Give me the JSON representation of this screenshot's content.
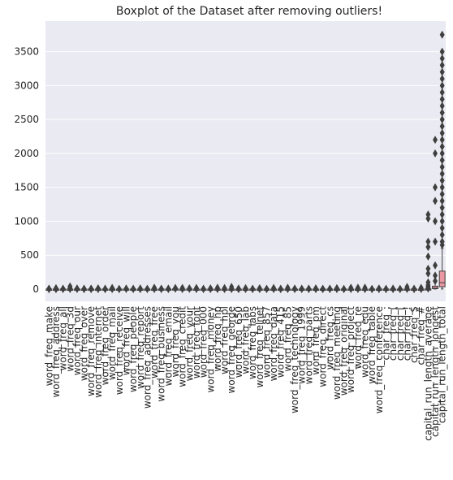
{
  "chart_data": {
    "type": "boxplot",
    "title": "Boxplot of the Dataset after removing outliers!",
    "xlabel": "",
    "ylabel": "",
    "ylim": [
      -180,
      3950
    ],
    "yticks": [
      0,
      500,
      1000,
      1500,
      2000,
      2500,
      3000,
      3500
    ],
    "grid": true,
    "colors": {
      "background": "#eaeaf2",
      "grid": "#ffffff",
      "text": "#262626",
      "box_edge": "#3f3f3f"
    },
    "categories": [
      "word_freq_make",
      "word_freq_address",
      "word_freq_all",
      "word_freq_3d",
      "word_freq_our",
      "word_freq_over",
      "word_freq_remove",
      "word_freq_internet",
      "word_freq_order",
      "word_freq_mail",
      "word_freq_receive",
      "word_freq_will",
      "word_freq_people",
      "word_freq_report",
      "word_freq_addresses",
      "word_freq_free",
      "word_freq_business",
      "word_freq_email",
      "word_freq_you",
      "word_freq_credit",
      "word_freq_your",
      "word_freq_font",
      "word_freq_000",
      "word_freq_money",
      "word_freq_hp",
      "word_freq_hpl",
      "word_freq_george",
      "word_freq_650",
      "word_freq_lab",
      "word_freq_labs",
      "word_freq_telnet",
      "word_freq_857",
      "word_freq_data",
      "word_freq_415",
      "word_freq_85",
      "word_freq_technology",
      "word_freq_1999",
      "word_freq_parts",
      "word_freq_pm",
      "word_freq_direct",
      "word_freq_cs",
      "word_freq_meeting",
      "word_freq_original",
      "word_freq_project",
      "word_freq_re",
      "word_freq_edu",
      "word_freq_table",
      "word_freq_conference",
      "char_freq_;",
      "char_freq_(",
      "char_freq_[",
      "char_freq_!",
      "char_freq_$",
      "char_freq_#",
      "capital_run_length_average",
      "capital_run_length_longest",
      "capital_run_length_total"
    ],
    "colors_series": [
      "#ea96a3",
      "#e59d7e",
      "#d49f59",
      "#c3a452",
      "#b3a64a",
      "#a2aa45",
      "#8eaf45",
      "#6fb449",
      "#52b24f",
      "#4fb267",
      "#52b27f",
      "#53b08c",
      "#54af97",
      "#56afa2",
      "#58aeac",
      "#5aacb7",
      "#5caac4",
      "#5fa8d2",
      "#6aa1e3",
      "#8ca1e5",
      "#a39ce5",
      "#b596e6",
      "#c98ee6",
      "#df83e4",
      "#e387d2",
      "#e68bc3",
      "#e88fb5",
      "#ea94a8",
      "#ea96a3",
      "#e59d7e",
      "#d49f59",
      "#c3a452",
      "#b3a64a",
      "#a2aa45",
      "#8eaf45",
      "#6fb449",
      "#52b24f",
      "#4fb267",
      "#52b27f",
      "#53b08c",
      "#54af97",
      "#56afa2",
      "#58aeac",
      "#5aacb7",
      "#5caac4",
      "#5fa8d2",
      "#6aa1e3",
      "#8ca1e5",
      "#a39ce5",
      "#b596e6",
      "#c98ee6",
      "#df83e4",
      "#e387d2",
      "#e68bc3",
      "#e88fb5",
      "#ea94a8",
      "#ea96a3"
    ],
    "series": [
      {
        "q1": 0,
        "med": 0,
        "q3": 0,
        "whislo": 0,
        "whishi": 0,
        "fliers": [
          0.5,
          1,
          2,
          4,
          5,
          6
        ]
      },
      {
        "q1": 0,
        "med": 0,
        "q3": 0,
        "whislo": 0,
        "whishi": 0,
        "fliers": [
          0.5,
          1,
          3,
          5,
          8,
          14
        ]
      },
      {
        "q1": 0,
        "med": 0,
        "q3": 0.4,
        "whislo": 0,
        "whishi": 1,
        "fliers": [
          2,
          3,
          4,
          5
        ]
      },
      {
        "q1": 0,
        "med": 0,
        "q3": 0,
        "whislo": 0,
        "whishi": 0,
        "fliers": [
          1,
          5,
          10,
          20,
          40
        ]
      },
      {
        "q1": 0,
        "med": 0,
        "q3": 0.4,
        "whislo": 0,
        "whishi": 1,
        "fliers": [
          2,
          4,
          6,
          10
        ]
      },
      {
        "q1": 0,
        "med": 0,
        "q3": 0,
        "whislo": 0,
        "whishi": 0,
        "fliers": [
          0.5,
          1,
          2,
          4,
          5
        ]
      },
      {
        "q1": 0,
        "med": 0,
        "q3": 0,
        "whislo": 0,
        "whishi": 0,
        "fliers": [
          0.5,
          1,
          3,
          5,
          7
        ]
      },
      {
        "q1": 0,
        "med": 0,
        "q3": 0,
        "whislo": 0,
        "whishi": 0,
        "fliers": [
          0.5,
          2,
          5,
          8,
          11
        ]
      },
      {
        "q1": 0,
        "med": 0,
        "q3": 0,
        "whislo": 0,
        "whishi": 0,
        "fliers": [
          0.5,
          1,
          2,
          4,
          5
        ]
      },
      {
        "q1": 0,
        "med": 0,
        "q3": 0.2,
        "whislo": 0,
        "whishi": 0.5,
        "fliers": [
          1,
          3,
          6,
          9,
          18
        ]
      },
      {
        "q1": 0,
        "med": 0,
        "q3": 0,
        "whislo": 0,
        "whishi": 0,
        "fliers": [
          0.5,
          1,
          2
        ]
      },
      {
        "q1": 0,
        "med": 0.1,
        "q3": 0.8,
        "whislo": 0,
        "whishi": 2,
        "fliers": [
          3,
          5,
          9
        ]
      },
      {
        "q1": 0,
        "med": 0,
        "q3": 0,
        "whislo": 0,
        "whishi": 0,
        "fliers": [
          0.5,
          2,
          5
        ]
      },
      {
        "q1": 0,
        "med": 0,
        "q3": 0,
        "whislo": 0,
        "whishi": 0,
        "fliers": [
          0.5,
          3,
          10
        ]
      },
      {
        "q1": 0,
        "med": 0,
        "q3": 0,
        "whislo": 0,
        "whishi": 0,
        "fliers": [
          0.5,
          2,
          4
        ]
      },
      {
        "q1": 0,
        "med": 0,
        "q3": 0.1,
        "whislo": 0,
        "whishi": 0.2,
        "fliers": [
          1,
          5,
          10,
          20
        ]
      },
      {
        "q1": 0,
        "med": 0,
        "q3": 0,
        "whislo": 0,
        "whishi": 0,
        "fliers": [
          0.5,
          3,
          7
        ]
      },
      {
        "q1": 0,
        "med": 0,
        "q3": 0,
        "whislo": 0,
        "whishi": 0,
        "fliers": [
          0.5,
          3,
          9
        ]
      },
      {
        "q1": 0,
        "med": 1.3,
        "q3": 2.6,
        "whislo": 0,
        "whishi": 6,
        "fliers": [
          7,
          10,
          18
        ]
      },
      {
        "q1": 0,
        "med": 0,
        "q3": 0,
        "whislo": 0,
        "whishi": 0,
        "fliers": [
          0.5,
          5,
          18
        ]
      },
      {
        "q1": 0,
        "med": 0.2,
        "q3": 1.3,
        "whislo": 0,
        "whishi": 3,
        "fliers": [
          4,
          7,
          11
        ]
      },
      {
        "q1": 0,
        "med": 0,
        "q3": 0,
        "whislo": 0,
        "whishi": 0,
        "fliers": [
          1,
          6,
          17
        ]
      },
      {
        "q1": 0,
        "med": 0,
        "q3": 0,
        "whislo": 0,
        "whishi": 0,
        "fliers": [
          0.5,
          2,
          5
        ]
      },
      {
        "q1": 0,
        "med": 0,
        "q3": 0,
        "whislo": 0,
        "whishi": 0,
        "fliers": [
          0.5,
          5,
          12
        ]
      },
      {
        "q1": 0,
        "med": 0,
        "q3": 0,
        "whislo": 0,
        "whishi": 0,
        "fliers": [
          0.5,
          5,
          20
        ]
      },
      {
        "q1": 0,
        "med": 0,
        "q3": 0,
        "whislo": 0,
        "whishi": 0,
        "fliers": [
          0.5,
          4,
          16
        ]
      },
      {
        "q1": 0,
        "med": 0,
        "q3": 0,
        "whislo": 0,
        "whishi": 0,
        "fliers": [
          0.5,
          8,
          33
        ]
      },
      {
        "q1": 0,
        "med": 0,
        "q3": 0,
        "whislo": 0,
        "whishi": 0,
        "fliers": [
          0.5,
          3,
          9
        ]
      },
      {
        "q1": 0,
        "med": 0,
        "q3": 0,
        "whislo": 0,
        "whishi": 0,
        "fliers": [
          0.5,
          5,
          14
        ]
      },
      {
        "q1": 0,
        "med": 0,
        "q3": 0,
        "whislo": 0,
        "whishi": 0,
        "fliers": [
          0.5,
          2,
          6
        ]
      },
      {
        "q1": 0,
        "med": 0,
        "q3": 0,
        "whislo": 0,
        "whishi": 0,
        "fliers": [
          0.5,
          4,
          13
        ]
      },
      {
        "q1": 0,
        "med": 0,
        "q3": 0,
        "whislo": 0,
        "whishi": 0,
        "fliers": [
          0.5,
          1,
          5
        ]
      },
      {
        "q1": 0,
        "med": 0,
        "q3": 0,
        "whislo": 0,
        "whishi": 0,
        "fliers": [
          0.5,
          5,
          18
        ]
      },
      {
        "q1": 0,
        "med": 0,
        "q3": 0,
        "whislo": 0,
        "whishi": 0,
        "fliers": [
          0.5,
          1,
          5
        ]
      },
      {
        "q1": 0,
        "med": 0,
        "q3": 0,
        "whislo": 0,
        "whishi": 0,
        "fliers": [
          0.5,
          5,
          20
        ]
      },
      {
        "q1": 0,
        "med": 0,
        "q3": 0,
        "whislo": 0,
        "whishi": 0,
        "fliers": [
          0.5,
          2,
          8
        ]
      },
      {
        "q1": 0,
        "med": 0,
        "q3": 0,
        "whislo": 0,
        "whishi": 0,
        "fliers": [
          0.5,
          2,
          7
        ]
      },
      {
        "q1": 0,
        "med": 0,
        "q3": 0,
        "whislo": 0,
        "whishi": 0,
        "fliers": [
          0.5,
          2,
          8
        ]
      },
      {
        "q1": 0,
        "med": 0,
        "q3": 0,
        "whislo": 0,
        "whishi": 0,
        "fliers": [
          0.5,
          3,
          11
        ]
      },
      {
        "q1": 0,
        "med": 0,
        "q3": 0,
        "whislo": 0,
        "whishi": 0,
        "fliers": [
          0.5,
          1,
          5
        ]
      },
      {
        "q1": 0,
        "med": 0,
        "q3": 0,
        "whislo": 0,
        "whishi": 0,
        "fliers": [
          0.5,
          2,
          7
        ]
      },
      {
        "q1": 0,
        "med": 0,
        "q3": 0,
        "whislo": 0,
        "whishi": 0,
        "fliers": [
          0.5,
          4,
          14
        ]
      },
      {
        "q1": 0,
        "med": 0,
        "q3": 0,
        "whislo": 0,
        "whishi": 0,
        "fliers": [
          0.5,
          1,
          3
        ]
      },
      {
        "q1": 0,
        "med": 0,
        "q3": 0,
        "whislo": 0,
        "whishi": 0,
        "fliers": [
          0.5,
          5,
          20
        ]
      },
      {
        "q1": 0,
        "med": 0,
        "q3": 0.1,
        "whislo": 0,
        "whishi": 0.2,
        "fliers": [
          1,
          6,
          21
        ]
      },
      {
        "q1": 0,
        "med": 0,
        "q3": 0,
        "whislo": 0,
        "whishi": 0,
        "fliers": [
          0.5,
          6,
          22
        ]
      },
      {
        "q1": 0,
        "med": 0,
        "q3": 0,
        "whislo": 0,
        "whishi": 0,
        "fliers": [
          0.5,
          1,
          2
        ]
      },
      {
        "q1": 0,
        "med": 0,
        "q3": 0,
        "whislo": 0,
        "whishi": 0,
        "fliers": [
          0.5,
          3,
          10
        ]
      },
      {
        "q1": 0,
        "med": 0,
        "q3": 0,
        "whislo": 0,
        "whishi": 0,
        "fliers": [
          0.5,
          1,
          4
        ]
      },
      {
        "q1": 0,
        "med": 0,
        "q3": 0.2,
        "whislo": 0,
        "whishi": 0.4,
        "fliers": [
          1,
          3,
          9
        ]
      },
      {
        "q1": 0,
        "med": 0,
        "q3": 0,
        "whislo": 0,
        "whishi": 0,
        "fliers": [
          0.5,
          1,
          4
        ]
      },
      {
        "q1": 0,
        "med": 0,
        "q3": 0.3,
        "whislo": 0,
        "whishi": 0.8,
        "fliers": [
          2,
          10,
          32
        ]
      },
      {
        "q1": 0,
        "med": 0,
        "q3": 0,
        "whislo": 0,
        "whishi": 0,
        "fliers": [
          0.5,
          2,
          6
        ]
      },
      {
        "q1": 0,
        "med": 0,
        "q3": 0,
        "whislo": 0,
        "whishi": 0,
        "fliers": [
          0.5,
          5,
          19
        ]
      },
      {
        "q1": 1.6,
        "med": 2.3,
        "q3": 3.7,
        "whislo": 1,
        "whishi": 6,
        "fliers": [
          8,
          15,
          25,
          40,
          60,
          100,
          230,
          300,
          480,
          620,
          700,
          1040,
          1100
        ]
      },
      {
        "q1": 6,
        "med": 15,
        "q3": 43,
        "whislo": 1,
        "whishi": 98,
        "fliers": [
          120,
          200,
          350,
          700,
          1000,
          1300,
          1500,
          2000,
          2200
        ]
      },
      {
        "q1": 35,
        "med": 95,
        "q3": 265,
        "whislo": 1,
        "whishi": 600,
        "fliers": [
          650,
          700,
          800,
          900,
          1000,
          1100,
          1200,
          1300,
          1400,
          1500,
          1600,
          1700,
          1800,
          1900,
          2000,
          2100,
          2200,
          2300,
          2400,
          2500,
          2600,
          2700,
          2800,
          2900,
          3000,
          3100,
          3200,
          3300,
          3400,
          3500,
          3750
        ]
      }
    ]
  }
}
